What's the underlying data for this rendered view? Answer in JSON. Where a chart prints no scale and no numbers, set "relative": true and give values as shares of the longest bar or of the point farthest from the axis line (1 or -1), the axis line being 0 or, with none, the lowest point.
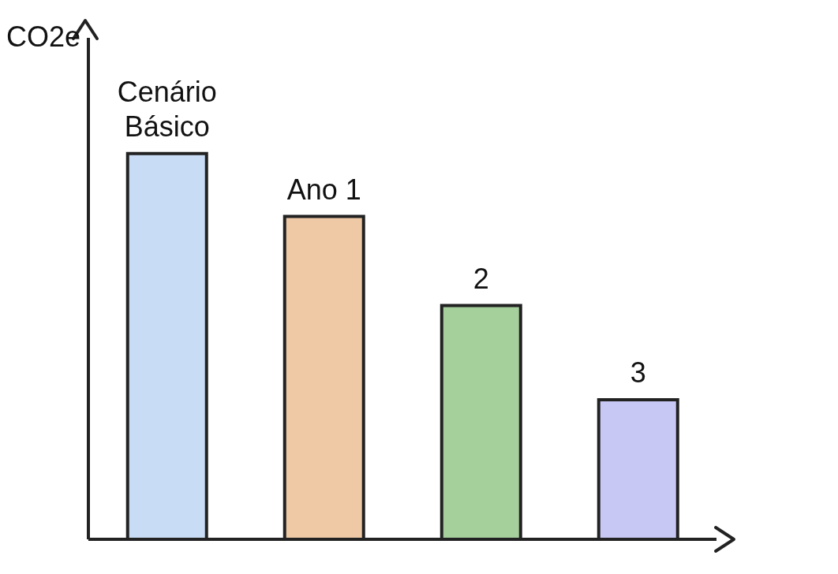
{
  "chart_data": {
    "type": "bar",
    "relative": true,
    "ylabel": "CO2e",
    "categories": [
      "Cenário Básico",
      "Ano 1",
      "2",
      "3"
    ],
    "values": [
      1,
      0.837,
      0.606,
      0.362
    ],
    "colors": [
      "#c9dcf5",
      "#efc9a6",
      "#a5cf9b",
      "#c8c8f5"
    ],
    "grid": false,
    "legend": false
  }
}
